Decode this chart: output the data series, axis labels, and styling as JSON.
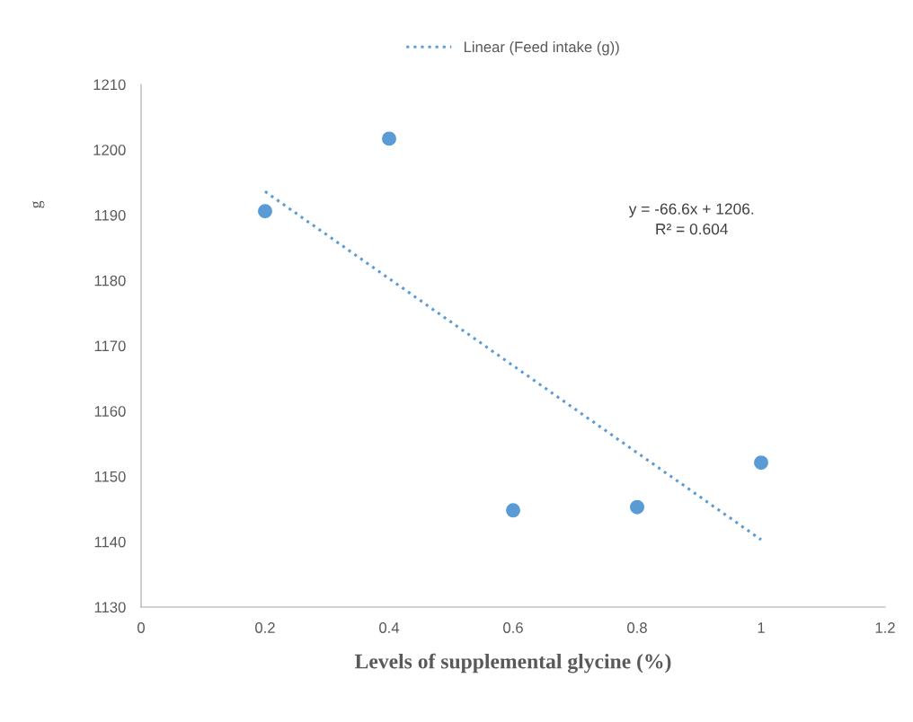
{
  "chart_data": {
    "type": "scatter",
    "xlabel": "Levels of supplemental glycine (%)",
    "ylabel": "g",
    "xlim": [
      0,
      1.2
    ],
    "xticks": [
      0,
      0.2,
      0.4,
      0.6,
      0.8,
      1,
      1.2
    ],
    "ylim": [
      1130,
      1210
    ],
    "yticks": [
      1130,
      1140,
      1150,
      1160,
      1170,
      1180,
      1190,
      1200,
      1210
    ],
    "x": [
      0.2,
      0.4,
      0.6,
      0.8,
      1.0
    ],
    "series": [
      {
        "color": "#5b9bd5",
        "marker": "circle",
        "values": [
          1190.6,
          1201.7,
          1144.8,
          1145.3,
          1152.1
        ]
      },
      {
        "type": "line",
        "name": "Linear (Feed intake (g))",
        "color": "#5b9bd5",
        "line_style": "dotted",
        "marker": "none",
        "x": [
          0.2,
          1.0
        ],
        "values": [
          1193.6,
          1140.3
        ]
      }
    ],
    "annotations": [
      "y = -66.6x + 1206.\nR² = 0.604"
    ],
    "grid": false,
    "legend": "top"
  }
}
